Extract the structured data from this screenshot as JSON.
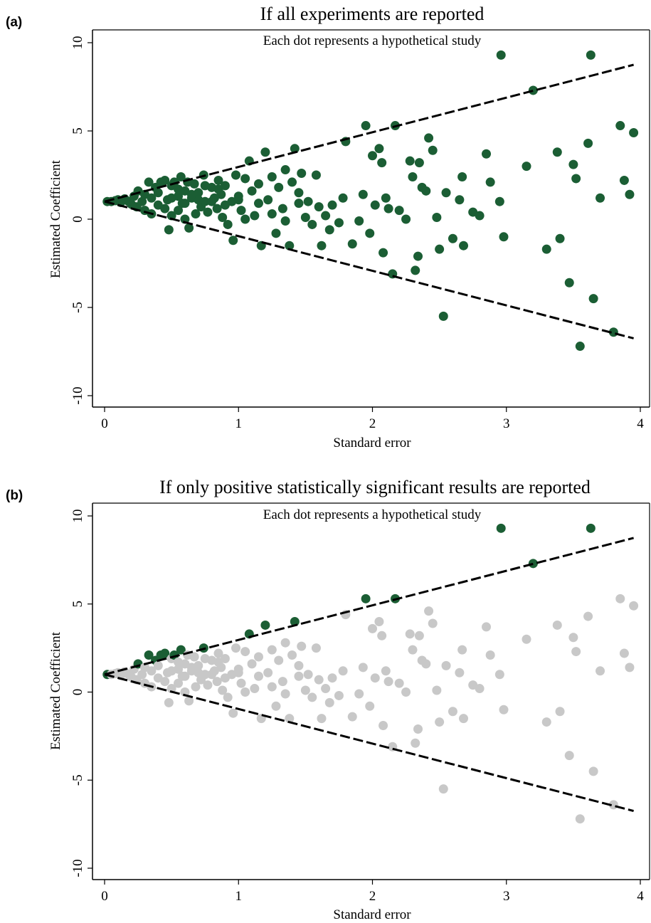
{
  "chart_data": [
    {
      "type": "scatter",
      "panel_label": "(a)",
      "title": "If all experiments are reported",
      "subtitle": "Each dot represents a hypothetical study",
      "xlabel": "Standard error",
      "ylabel": "Estimated Coefficient",
      "xlim": [
        0,
        4
      ],
      "ylim": [
        -10,
        10
      ],
      "xticks": [
        "0",
        "1",
        "2",
        "3",
        "4"
      ],
      "yticks": [
        "10",
        "5",
        "0",
        "-5",
        "-10"
      ],
      "grid": false,
      "funnel_lines": [
        {
          "x": [
            0,
            3.95
          ],
          "y": [
            1,
            8.75
          ]
        },
        {
          "x": [
            0,
            3.95
          ],
          "y": [
            1,
            -6.75
          ]
        }
      ],
      "highlight_color": "#1b5e34",
      "other_color": "#1b5e34",
      "series": [
        {
          "values": [
            [
              0.02,
              1.0
            ],
            [
              0.05,
              1.0
            ],
            [
              0.08,
              1.05
            ],
            [
              0.1,
              1.1
            ],
            [
              0.12,
              0.95
            ],
            [
              0.15,
              1.15
            ],
            [
              0.18,
              1.0
            ],
            [
              0.2,
              0.85
            ],
            [
              0.22,
              1.3
            ],
            [
              0.24,
              0.7
            ],
            [
              0.25,
              1.6
            ],
            [
              0.28,
              1.0
            ],
            [
              0.3,
              1.4
            ],
            [
              0.3,
              0.5
            ],
            [
              0.33,
              2.1
            ],
            [
              0.35,
              1.2
            ],
            [
              0.35,
              0.3
            ],
            [
              0.38,
              1.8
            ],
            [
              0.4,
              0.8
            ],
            [
              0.4,
              1.5
            ],
            [
              0.42,
              2.1
            ],
            [
              0.45,
              0.6
            ],
            [
              0.45,
              2.2
            ],
            [
              0.47,
              1.1
            ],
            [
              0.48,
              -0.6
            ],
            [
              0.5,
              1.9
            ],
            [
              0.5,
              0.2
            ],
            [
              0.52,
              2.1
            ],
            [
              0.55,
              1.3
            ],
            [
              0.55,
              0.5
            ],
            [
              0.57,
              2.4
            ],
            [
              0.58,
              0.9
            ],
            [
              0.6,
              1.6
            ],
            [
              0.6,
              0.0
            ],
            [
              0.62,
              2.1
            ],
            [
              0.63,
              -0.5
            ],
            [
              0.65,
              1.2
            ],
            [
              0.67,
              2.0
            ],
            [
              0.68,
              0.3
            ],
            [
              0.7,
              1.5
            ],
            [
              0.72,
              0.7
            ],
            [
              0.74,
              2.5
            ],
            [
              0.75,
              1.0
            ],
            [
              0.77,
              0.4
            ],
            [
              0.8,
              1.8
            ],
            [
              0.82,
              1.2
            ],
            [
              0.84,
              0.6
            ],
            [
              0.85,
              2.2
            ],
            [
              0.87,
              1.4
            ],
            [
              0.88,
              0.1
            ],
            [
              0.9,
              1.9
            ],
            [
              0.92,
              -0.3
            ],
            [
              0.95,
              1.0
            ],
            [
              0.96,
              -1.2
            ],
            [
              0.98,
              2.5
            ],
            [
              1.0,
              1.3
            ],
            [
              1.02,
              0.5
            ],
            [
              1.05,
              2.3
            ],
            [
              1.08,
              3.3
            ],
            [
              1.1,
              1.6
            ],
            [
              1.12,
              0.2
            ],
            [
              1.15,
              2.0
            ],
            [
              1.17,
              -1.5
            ],
            [
              1.2,
              3.8
            ],
            [
              1.22,
              1.1
            ],
            [
              1.25,
              2.4
            ],
            [
              1.28,
              -0.8
            ],
            [
              1.3,
              1.8
            ],
            [
              1.33,
              0.6
            ],
            [
              1.35,
              2.8
            ],
            [
              1.38,
              -1.5
            ],
            [
              1.4,
              2.1
            ],
            [
              1.42,
              4.0
            ],
            [
              1.45,
              1.5
            ],
            [
              1.47,
              2.6
            ],
            [
              1.5,
              0.1
            ],
            [
              1.52,
              1.0
            ],
            [
              1.55,
              -0.3
            ],
            [
              1.58,
              2.5
            ],
            [
              1.6,
              0.7
            ],
            [
              1.62,
              -1.5
            ],
            [
              1.65,
              0.2
            ],
            [
              1.68,
              -0.6
            ],
            [
              1.7,
              0.8
            ],
            [
              1.75,
              -0.2
            ],
            [
              1.78,
              1.2
            ],
            [
              1.8,
              4.4
            ],
            [
              1.85,
              -1.4
            ],
            [
              1.9,
              -0.1
            ],
            [
              1.93,
              1.4
            ],
            [
              1.95,
              5.3
            ],
            [
              1.98,
              -0.8
            ],
            [
              2.0,
              3.6
            ],
            [
              2.02,
              0.8
            ],
            [
              2.05,
              4.0
            ],
            [
              2.07,
              3.2
            ],
            [
              2.08,
              -1.9
            ],
            [
              2.1,
              1.2
            ],
            [
              2.12,
              0.6
            ],
            [
              2.15,
              -3.1
            ],
            [
              2.17,
              5.3
            ],
            [
              2.2,
              0.5
            ],
            [
              2.25,
              0.0
            ],
            [
              2.28,
              3.3
            ],
            [
              2.3,
              2.4
            ],
            [
              2.32,
              -2.9
            ],
            [
              2.34,
              -2.1
            ],
            [
              2.35,
              3.2
            ],
            [
              2.37,
              1.8
            ],
            [
              2.4,
              1.6
            ],
            [
              2.42,
              4.6
            ],
            [
              2.45,
              3.9
            ],
            [
              2.48,
              0.1
            ],
            [
              2.5,
              -1.7
            ],
            [
              2.53,
              -5.5
            ],
            [
              2.55,
              1.5
            ],
            [
              2.6,
              -1.1
            ],
            [
              2.65,
              1.1
            ],
            [
              2.67,
              2.4
            ],
            [
              2.68,
              -1.5
            ],
            [
              2.75,
              0.4
            ],
            [
              2.8,
              0.2
            ],
            [
              2.85,
              3.7
            ],
            [
              2.88,
              2.1
            ],
            [
              2.95,
              1.0
            ],
            [
              2.96,
              9.3
            ],
            [
              2.98,
              -1.0
            ],
            [
              3.15,
              3.0
            ],
            [
              3.2,
              7.3
            ],
            [
              3.3,
              -1.7
            ],
            [
              3.38,
              3.8
            ],
            [
              3.4,
              -1.1
            ],
            [
              3.47,
              -3.6
            ],
            [
              3.5,
              3.1
            ],
            [
              3.52,
              2.3
            ],
            [
              3.55,
              -7.2
            ],
            [
              3.61,
              4.3
            ],
            [
              3.63,
              9.3
            ],
            [
              3.65,
              -4.5
            ],
            [
              3.7,
              1.2
            ],
            [
              3.8,
              -6.4
            ],
            [
              3.85,
              5.3
            ],
            [
              3.88,
              2.2
            ],
            [
              3.92,
              1.4
            ],
            [
              3.95,
              4.9
            ],
            [
              1.05,
              0.0
            ],
            [
              1.15,
              0.9
            ],
            [
              1.25,
              0.3
            ],
            [
              1.35,
              -0.1
            ],
            [
              1.45,
              0.9
            ],
            [
              0.5,
              1.2
            ],
            [
              0.6,
              0.9
            ],
            [
              0.7,
              1.1
            ],
            [
              0.8,
              1.0
            ],
            [
              0.9,
              0.8
            ],
            [
              1.0,
              1.1
            ],
            [
              0.55,
              1.7
            ],
            [
              0.65,
              1.4
            ],
            [
              0.75,
              1.9
            ],
            [
              0.85,
              1.7
            ]
          ]
        }
      ]
    },
    {
      "type": "scatter",
      "panel_label": "(b)",
      "title": "If only positive statistically significant results are reported",
      "subtitle": "Each dot represents a hypothetical study",
      "xlabel": "Standard error",
      "ylabel": "Estimated Coefficient",
      "xlim": [
        0,
        4
      ],
      "ylim": [
        -10,
        10
      ],
      "xticks": [
        "0",
        "1",
        "2",
        "3",
        "4"
      ],
      "yticks": [
        "10",
        "5",
        "0",
        "-5",
        "-10"
      ],
      "grid": false,
      "funnel_lines": [
        {
          "x": [
            0,
            3.95
          ],
          "y": [
            1,
            8.75
          ]
        },
        {
          "x": [
            0,
            3.95
          ],
          "y": [
            1,
            -6.75
          ]
        }
      ],
      "highlight_color": "#1b5e34",
      "other_color": "#c8c8c8",
      "series": [
        {
          "values": "same as panel (a)"
        }
      ]
    }
  ]
}
